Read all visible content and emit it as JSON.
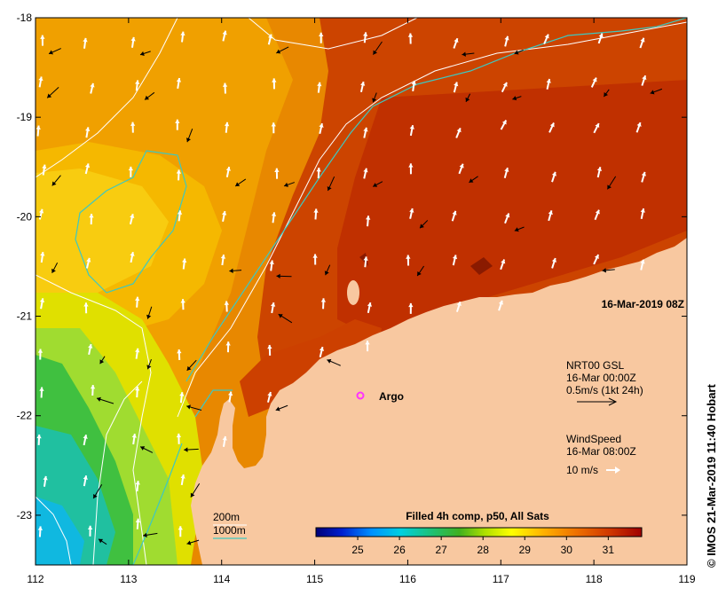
{
  "map": {
    "timestamp": "16-Mar-2019 08Z",
    "lon_ticks": [
      "112",
      "113",
      "114",
      "115",
      "116",
      "117",
      "118",
      "119"
    ],
    "lat_ticks": [
      "-18",
      "-19",
      "-20",
      "-21",
      "-22",
      "-23"
    ],
    "lon_range": [
      112,
      119
    ],
    "lat_range": [
      -23.5,
      -18
    ]
  },
  "legend": {
    "current_title": "NRT00 GSL",
    "current_time": "16-Mar 00:00Z",
    "current_scale": "0.5m/s (1kt 24h)",
    "wind_title": "WindSpeed",
    "wind_time": "16-Mar 08:00Z",
    "wind_scale": "10 m/s",
    "isobath_200": "200m",
    "isobath_1000": "1000m",
    "argo_label": "Argo"
  },
  "colorbar": {
    "title": "Filled 4h comp, p50, All Sats",
    "ticks": [
      "25",
      "26",
      "27",
      "28",
      "29",
      "30",
      "31"
    ]
  },
  "colors": {
    "land": "#f8c8a0",
    "isobath_200": "#ffffff",
    "isobath_1000": "#3ec8c0",
    "argo": "#ff33ff"
  },
  "credit": "© IMOS 21-Mar-2019 11:40 Hobart"
}
